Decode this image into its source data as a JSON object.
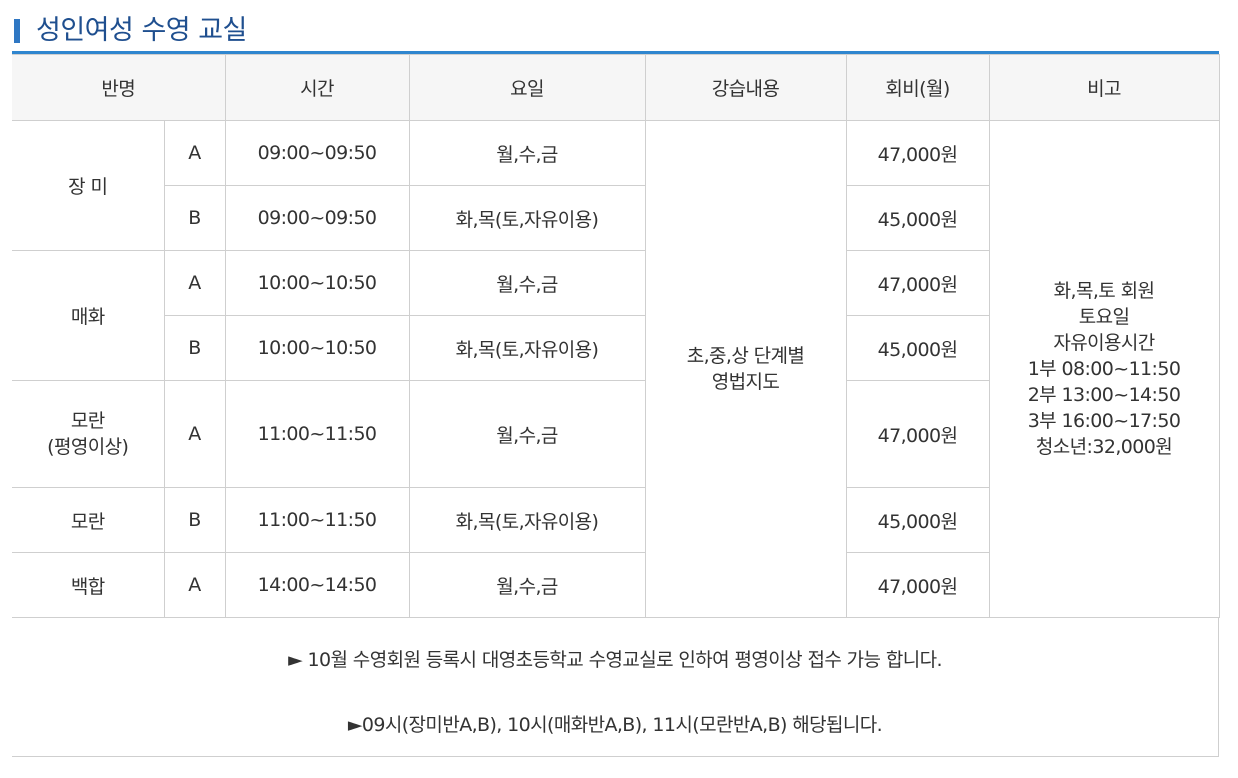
{
  "title": "성인여성 수영 교실",
  "columns": {
    "class": "반명",
    "time": "시간",
    "days": "요일",
    "content": "강습내용",
    "fee": "회비(월)",
    "note": "비고"
  },
  "groups": {
    "jangmi": "장 미",
    "maehwa": "매화",
    "moran1_line1": "모란",
    "moran1_line2": "(평영이상)",
    "moran2": "모란",
    "baekhap": "백합"
  },
  "rows": [
    {
      "section": "A",
      "time": "09:00~09:50",
      "days": "월,수,금",
      "fee": "47,000원"
    },
    {
      "section": "B",
      "time": "09:00~09:50",
      "days": "화,목(토,자유이용)",
      "fee": "45,000원"
    },
    {
      "section": "A",
      "time": "10:00~10:50",
      "days": "월,수,금",
      "fee": "47,000원"
    },
    {
      "section": "B",
      "time": "10:00~10:50",
      "days": "화,목(토,자유이용)",
      "fee": "45,000원"
    },
    {
      "section": "A",
      "time": "11:00~11:50",
      "days": "월,수,금",
      "fee": "47,000원"
    },
    {
      "section": "B",
      "time": "11:00~11:50",
      "days": "화,목(토,자유이용)",
      "fee": "45,000원"
    },
    {
      "section": "A",
      "time": "14:00~14:50",
      "days": "월,수,금",
      "fee": "47,000원"
    }
  ],
  "content_lines": [
    "초,중,상 단계별",
    "영법지도"
  ],
  "remarks_lines": [
    "화,목,토 회원",
    "토요일",
    "자유이용시간",
    "1부 08:00~11:50",
    "2부 13:00~14:50",
    "3부 16:00~17:50",
    "청소년:32,000원"
  ],
  "notes": [
    "► 10월 수영회원 등록시 대영초등학교 수영교실로 인하여 평영이상 접수 가능 합니다.",
    "►09시(장미반A,B), 10시(매화반A,B), 11시(모란반A,B) 해당됩니다."
  ]
}
